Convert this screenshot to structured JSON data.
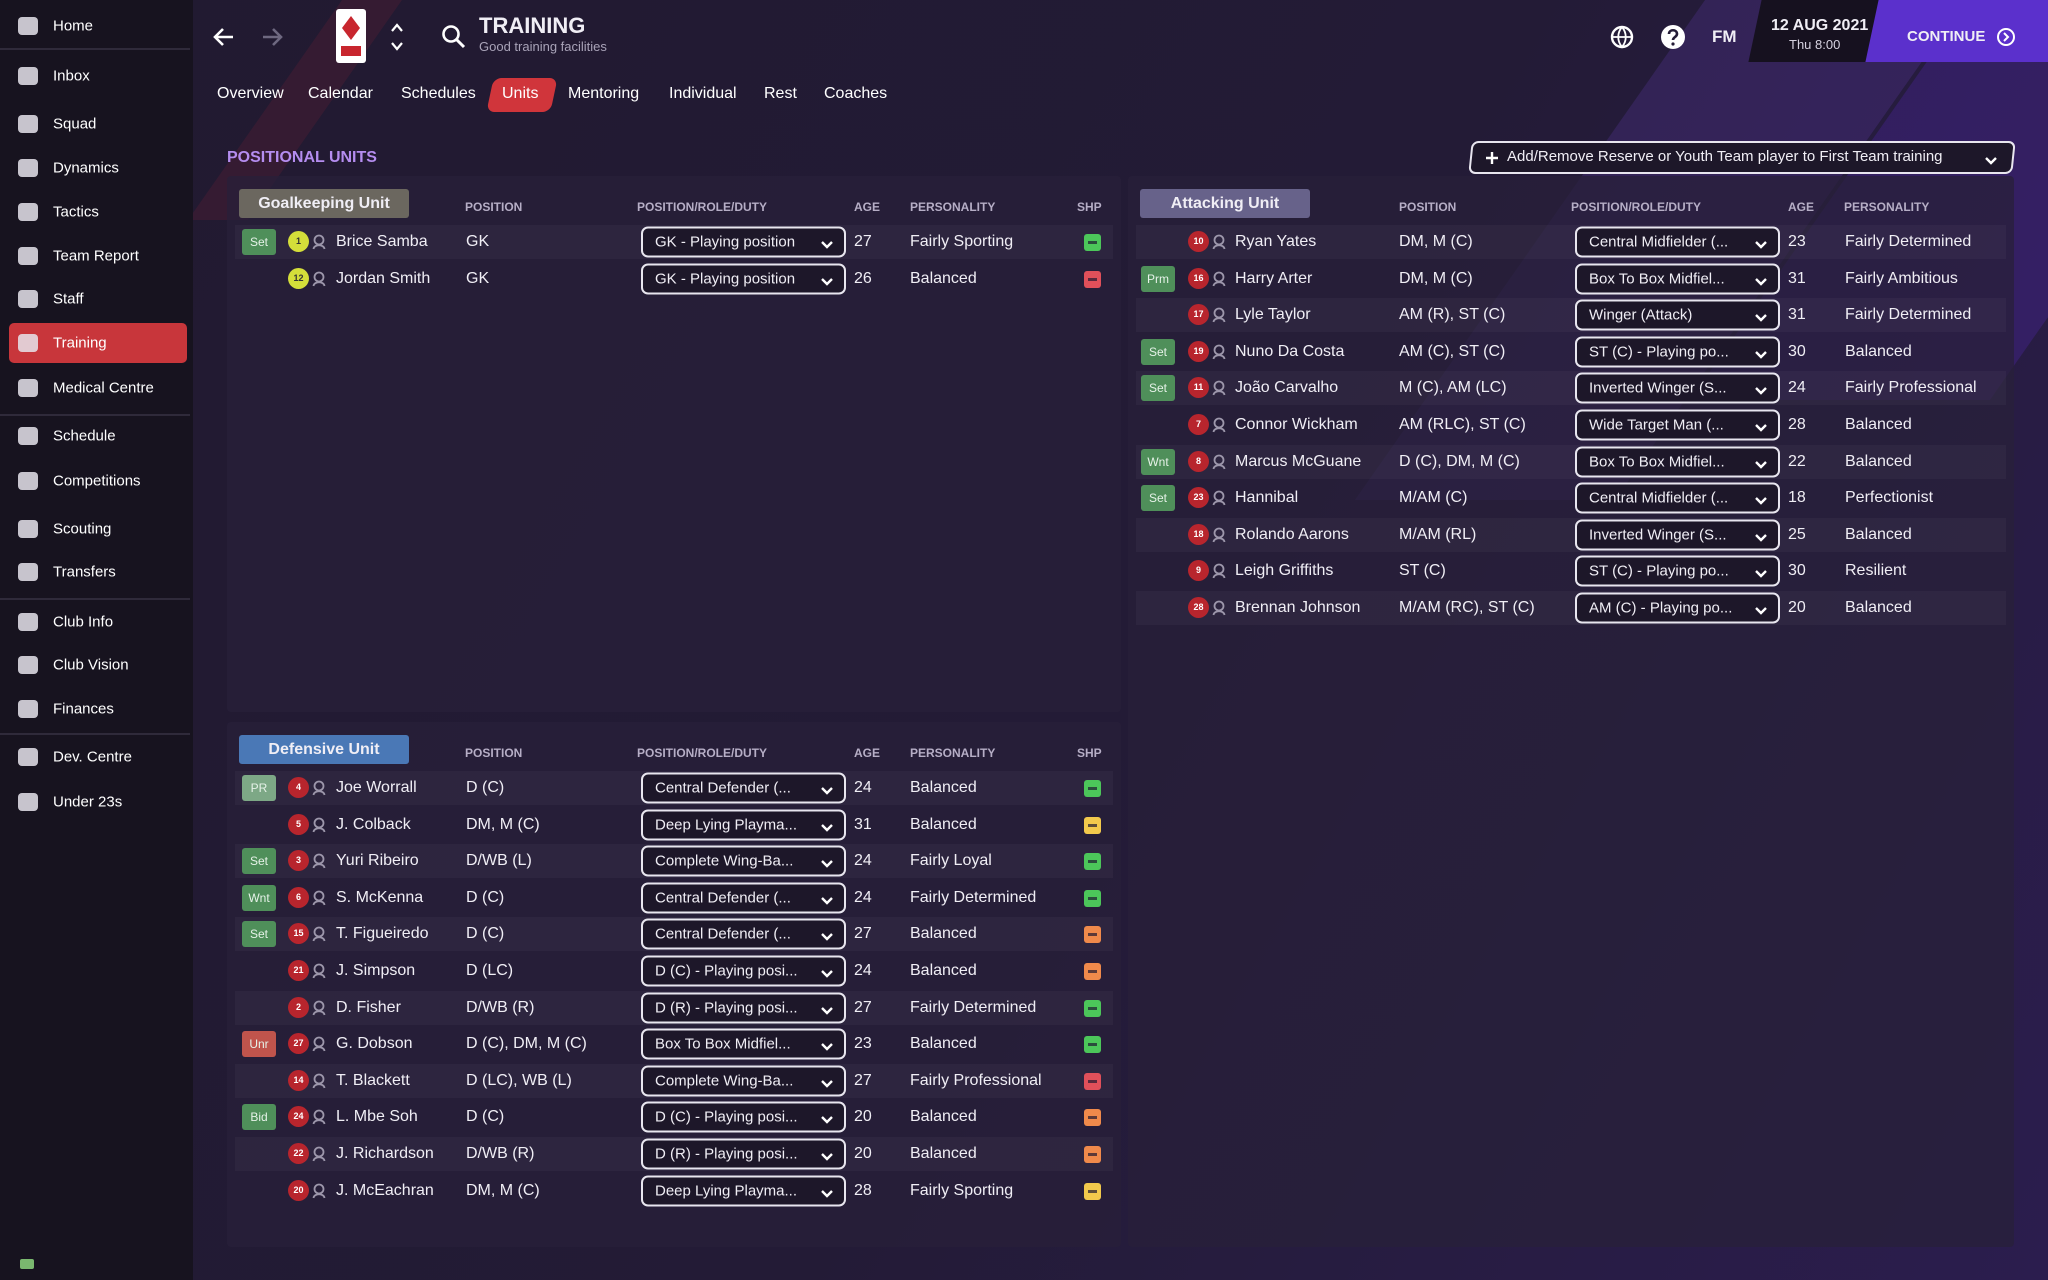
{
  "sidebar": {
    "items": [
      "Home",
      "Inbox",
      "Squad",
      "Dynamics",
      "Tactics",
      "Team Report",
      "Staff",
      "Training",
      "Medical Centre",
      "Schedule",
      "Competitions",
      "Scouting",
      "Transfers",
      "Club Info",
      "Club Vision",
      "Finances",
      "Dev. Centre",
      "Under 23s"
    ]
  },
  "header": {
    "title": "TRAINING",
    "subtitle": "Good training facilities",
    "brand": "FM",
    "date": "12 AUG 2021",
    "time": "Thu 8:00",
    "continue": "CONTINUE"
  },
  "tabs": [
    "Overview",
    "Calendar",
    "Schedules",
    "Units",
    "Mentoring",
    "Individual",
    "Rest",
    "Coaches"
  ],
  "section_title": "POSITIONAL UNITS",
  "add_button": "Add/Remove Reserve or Youth Team player to First Team training",
  "units": [
    {
      "name": "Goalkeeping Unit",
      "color": "#6b675f",
      "shirt_color": "#d4de3a",
      "columns": [
        "POSITION",
        "POSITION/ROLE/DUTY",
        "AGE",
        "PERSONALITY",
        "SHP"
      ],
      "rows": [
        {
          "status": {
            "label": "Set",
            "color": "#4f8f5a"
          },
          "number": "1",
          "name": "Brice Samba",
          "position": "GK",
          "role": "GK - Playing position",
          "age": 27,
          "personality": "Fairly Sporting",
          "shp": "#4cc65a"
        },
        {
          "status": null,
          "number": "12",
          "name": "Jordan Smith",
          "position": "GK",
          "role": "GK - Playing position",
          "age": 26,
          "personality": "Balanced",
          "shp": "#e0505a"
        }
      ]
    },
    {
      "name": "Attacking Unit",
      "color": "#67628a",
      "shirt_color": "#b8252d",
      "columns": [
        "POSITION",
        "POSITION/ROLE/DUTY",
        "AGE",
        "PERSONALITY"
      ],
      "rows": [
        {
          "status": null,
          "number": "10",
          "name": "Ryan Yates",
          "position": "DM, M (C)",
          "role": "Central Midfielder (...",
          "age": 23,
          "personality": "Fairly Determined"
        },
        {
          "status": {
            "label": "Prm",
            "color": "#4f8f5a"
          },
          "number": "16",
          "name": "Harry Arter",
          "position": "DM, M (C)",
          "role": "Box To Box Midfiel...",
          "age": 31,
          "personality": "Fairly Ambitious"
        },
        {
          "status": null,
          "number": "17",
          "name": "Lyle Taylor",
          "position": "AM (R), ST (C)",
          "role": "Winger (Attack)",
          "age": 31,
          "personality": "Fairly Determined"
        },
        {
          "status": {
            "label": "Set",
            "color": "#4f8f5a"
          },
          "number": "19",
          "name": "Nuno Da Costa",
          "position": "AM (C), ST (C)",
          "role": "ST (C) - Playing po...",
          "age": 30,
          "personality": "Balanced"
        },
        {
          "status": {
            "label": "Set",
            "color": "#4f8f5a"
          },
          "number": "11",
          "name": "João Carvalho",
          "position": "M (C), AM (LC)",
          "role": "Inverted Winger (S...",
          "age": 24,
          "personality": "Fairly Professional"
        },
        {
          "status": null,
          "number": "7",
          "name": "Connor Wickham",
          "position": "AM (RLC), ST (C)",
          "role": "Wide Target Man (...",
          "age": 28,
          "personality": "Balanced"
        },
        {
          "status": {
            "label": "Wnt",
            "color": "#4f8f5a"
          },
          "number": "8",
          "name": "Marcus McGuane",
          "position": "D (C), DM, M (C)",
          "role": "Box To Box Midfiel...",
          "age": 22,
          "personality": "Balanced"
        },
        {
          "status": {
            "label": "Set",
            "color": "#4f8f5a"
          },
          "number": "23",
          "name": "Hannibal",
          "position": "M/AM (C)",
          "role": "Central Midfielder (...",
          "age": 18,
          "personality": "Perfectionist"
        },
        {
          "status": null,
          "number": "18",
          "name": "Rolando Aarons",
          "position": "M/AM (RL)",
          "role": "Inverted Winger (S...",
          "age": 25,
          "personality": "Balanced"
        },
        {
          "status": null,
          "number": "9",
          "name": "Leigh Griffiths",
          "position": "ST (C)",
          "role": "ST (C) - Playing po...",
          "age": 30,
          "personality": "Resilient"
        },
        {
          "status": null,
          "number": "28",
          "name": "Brennan Johnson",
          "position": "M/AM (RC), ST (C)",
          "role": "AM (C) - Playing po...",
          "age": 20,
          "personality": "Balanced"
        }
      ]
    },
    {
      "name": "Defensive Unit",
      "color": "#4a78b6",
      "shirt_color": "#b8252d",
      "columns": [
        "POSITION",
        "POSITION/ROLE/DUTY",
        "AGE",
        "PERSONALITY",
        "SHP"
      ],
      "rows": [
        {
          "status": {
            "label": "PR",
            "color": "#7da886"
          },
          "number": "4",
          "name": "Joe Worrall",
          "position": "D (C)",
          "role": "Central Defender (...",
          "age": 24,
          "personality": "Balanced",
          "shp": "#4cc65a"
        },
        {
          "status": null,
          "number": "5",
          "name": "J. Colback",
          "position": "DM, M (C)",
          "role": "Deep Lying Playma...",
          "age": 31,
          "personality": "Balanced",
          "shp": "#f2c94c"
        },
        {
          "status": {
            "label": "Set",
            "color": "#4f8f5a"
          },
          "number": "3",
          "name": "Yuri Ribeiro",
          "position": "D/WB (L)",
          "role": "Complete Wing-Ba...",
          "age": 24,
          "personality": "Fairly Loyal",
          "shp": "#4cc65a"
        },
        {
          "status": {
            "label": "Wnt",
            "color": "#4f8f5a"
          },
          "number": "6",
          "name": "S. McKenna",
          "position": "D (C)",
          "role": "Central Defender (...",
          "age": 24,
          "personality": "Fairly Determined",
          "shp": "#4cc65a"
        },
        {
          "status": {
            "label": "Set",
            "color": "#4f8f5a"
          },
          "number": "15",
          "name": "T. Figueiredo",
          "position": "D (C)",
          "role": "Central Defender (...",
          "age": 27,
          "personality": "Balanced",
          "shp": "#f08a4b"
        },
        {
          "status": null,
          "number": "21",
          "name": "J. Simpson",
          "position": "D (LC)",
          "role": "D (C) - Playing posi...",
          "age": 24,
          "personality": "Balanced",
          "shp": "#f08a4b"
        },
        {
          "status": null,
          "number": "2",
          "name": "D. Fisher",
          "position": "D/WB (R)",
          "role": "D (R) - Playing posi...",
          "age": 27,
          "personality": "Fairly Determined",
          "shp": "#4cc65a"
        },
        {
          "status": {
            "label": "Unr",
            "color": "#c0544c"
          },
          "number": "27",
          "name": "G. Dobson",
          "position": "D (C), DM, M (C)",
          "role": "Box To Box Midfiel...",
          "age": 23,
          "personality": "Balanced",
          "shp": "#4cc65a"
        },
        {
          "status": null,
          "number": "14",
          "name": "T. Blackett",
          "position": "D (LC), WB (L)",
          "role": "Complete Wing-Ba...",
          "age": 27,
          "personality": "Fairly Professional",
          "shp": "#e0505a"
        },
        {
          "status": {
            "label": "Bid",
            "color": "#4f8f5a"
          },
          "number": "24",
          "name": "L. Mbe Soh",
          "position": "D (C)",
          "role": "D (C) - Playing posi...",
          "age": 20,
          "personality": "Balanced",
          "shp": "#f08a4b"
        },
        {
          "status": null,
          "number": "22",
          "name": "J. Richardson",
          "position": "D/WB (R)",
          "role": "D (R) - Playing posi...",
          "age": 20,
          "personality": "Balanced",
          "shp": "#f08a4b"
        },
        {
          "status": null,
          "number": "20",
          "name": "J. McEachran",
          "position": "DM, M (C)",
          "role": "Deep Lying Playma...",
          "age": 28,
          "personality": "Fairly Sporting",
          "shp": "#f2c94c"
        }
      ]
    }
  ]
}
